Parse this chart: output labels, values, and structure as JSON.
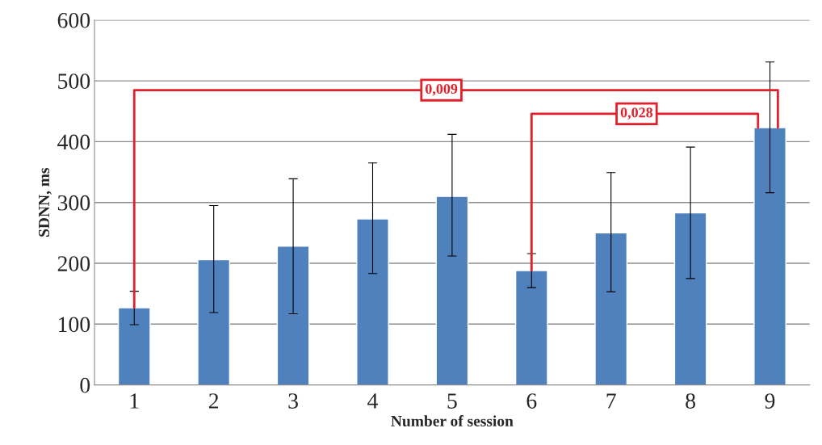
{
  "chart_data": {
    "type": "bar",
    "xlabel": "Number of session",
    "ylabel": "SDNN, ms",
    "categories": [
      "1",
      "2",
      "3",
      "4",
      "5",
      "6",
      "7",
      "8",
      "9"
    ],
    "values": [
      127,
      206,
      228,
      273,
      310,
      188,
      250,
      283,
      423
    ],
    "errors": [
      [
        99,
        154
      ],
      [
        119,
        295
      ],
      [
        117,
        339
      ],
      [
        183,
        365
      ],
      [
        212,
        412
      ],
      [
        160,
        216
      ],
      [
        153,
        349
      ],
      [
        175,
        391
      ],
      [
        316,
        531
      ]
    ],
    "color": "#4f81bd",
    "ylim": [
      0,
      600
    ],
    "yticks": [
      0,
      100,
      200,
      300,
      400,
      500,
      600
    ],
    "grid": "y",
    "annotations": [
      {
        "text": "0,009",
        "x": "1",
        "y": 127
      },
      {
        "text": "0,028",
        "x": "6",
        "y": 188
      }
    ]
  }
}
